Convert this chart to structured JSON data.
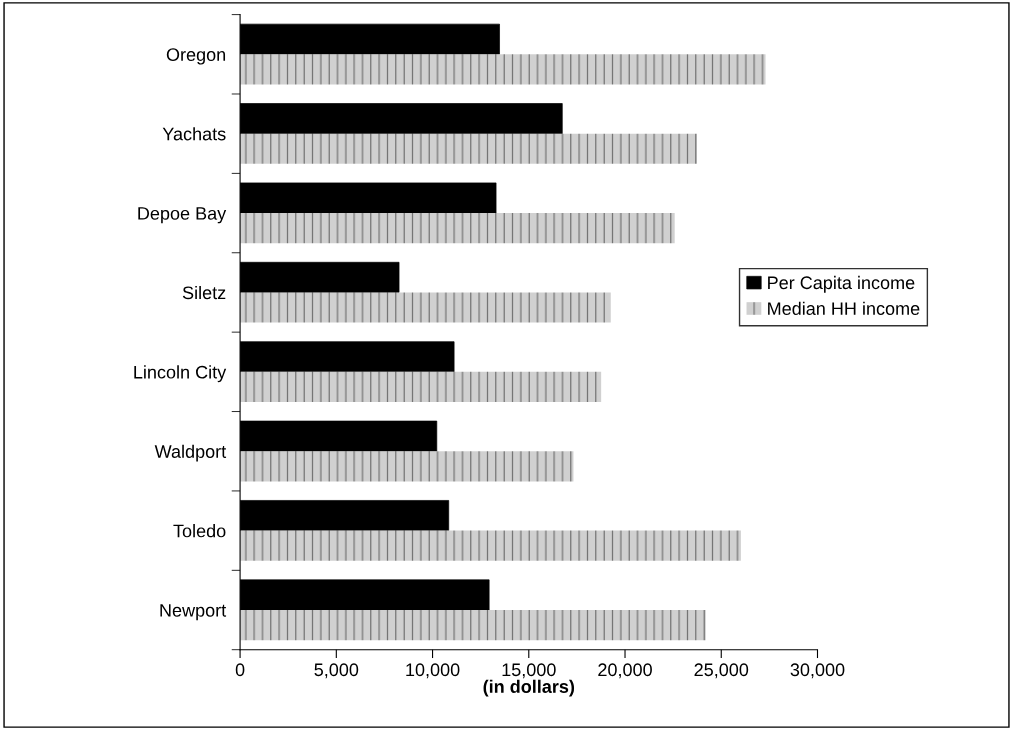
{
  "chart_data": {
    "type": "bar",
    "orientation": "horizontal",
    "xlabel": "(in dollars)",
    "categories": [
      "Oregon",
      "Yachats",
      "Depoe Bay",
      "Siletz",
      "Lincoln City",
      "Waldport",
      "Toledo",
      "Newport"
    ],
    "series": [
      {
        "name": "Per Capita income",
        "color": "#000000",
        "values": [
          13480,
          16740,
          13300,
          8260,
          11120,
          10220,
          10840,
          12940
        ]
      },
      {
        "name": "Median HH income",
        "color": "#d0d0d0",
        "values": [
          27300,
          23740,
          22580,
          19260,
          18760,
          17320,
          26020,
          24200
        ]
      }
    ],
    "xlim": [
      0,
      30000
    ],
    "xticks": [
      {
        "value": 0,
        "label": "0"
      },
      {
        "value": 5000,
        "label": "5,000"
      },
      {
        "value": 10000,
        "label": "10,000"
      },
      {
        "value": 15000,
        "label": "15,000"
      },
      {
        "value": 20000,
        "label": "20,000"
      },
      {
        "value": 25000,
        "label": "25,000"
      },
      {
        "value": 30000,
        "label": "30,000"
      }
    ],
    "grid": false,
    "legend": "right"
  }
}
